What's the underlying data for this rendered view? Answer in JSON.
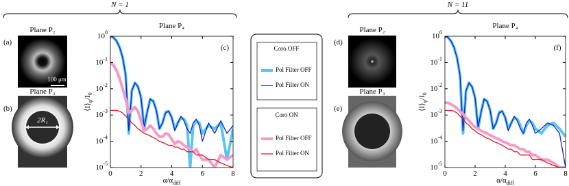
{
  "figure": {
    "groups": [
      {
        "label": "N = 1",
        "images": [
          {
            "tag": "(a)",
            "title": "Plane P₂",
            "scale_bar": "100 μm"
          },
          {
            "tag": "(b)",
            "title": "Plane P₃",
            "annotation": "2R₁"
          }
        ]
      },
      {
        "label": "N = 11",
        "images": [
          {
            "tag": "(d)",
            "title": "Plane P₂"
          },
          {
            "tag": "(e)",
            "title": "Plane P₃"
          }
        ]
      }
    ],
    "legend_groups": [
      "Coro OFF",
      "Coro ON"
    ]
  },
  "chart_data": [
    {
      "type": "line",
      "title": "Plane P₄",
      "tag": "(c)",
      "xlabel": "α/α_{diff}",
      "ylabel": "⟨I⟩_{φ}/I_{0}",
      "ylog": true,
      "grid": false,
      "xlim": [
        0,
        8
      ],
      "xticks": [
        0,
        2,
        4,
        6,
        8
      ],
      "ylim": [
        1e-05,
        1
      ],
      "yticks": [
        {
          "value": 1,
          "label": "10^{0}"
        },
        {
          "value": 0.1,
          "label": "10^{-1}"
        },
        {
          "value": 0.01,
          "label": "10^{-2}"
        },
        {
          "value": 0.001,
          "label": "10^{-3}"
        },
        {
          "value": 0.0001,
          "label": "10^{-4}"
        },
        {
          "value": 1e-05,
          "label": "10^{-5}"
        }
      ],
      "x": [
        0,
        0.2,
        0.4,
        0.6,
        0.8,
        1.0,
        1.2,
        1.4,
        1.6,
        1.8,
        2.0,
        2.2,
        2.4,
        2.6,
        2.8,
        3.0,
        3.2,
        3.4,
        3.6,
        3.8,
        4.0,
        4.2,
        4.4,
        4.6,
        4.8,
        5.0,
        5.2,
        5.4,
        5.6,
        5.8,
        6.0,
        6.4,
        6.8,
        7.2,
        7.6,
        8.0
      ],
      "series": [
        {
          "name": "Pol Filter OFF",
          "color": "#5bc4ef",
          "linewidth": 4,
          "values": [
            1,
            0.905,
            0.666,
            0.381,
            0.156,
            0.0328,
            0.0002,
            0.0085,
            0.017,
            0.012,
            0.0046,
            0.0003,
            0.0013,
            0.0041,
            0.0034,
            0.0015,
            0.0003,
            0.0005,
            0.0013,
            0.0014,
            0.0008,
            0.0003,
            0.0005,
            0.0008,
            0.0007,
            0.0004,
            1e-05,
            0.0004,
            0.0006,
            0.0005,
            0.0002,
            0.0004,
            0.0003,
            0.0005,
            2e-05,
            0.0003
          ]
        },
        {
          "name": "Pol Filter ON",
          "color": "#0a22d0",
          "linewidth": 1.3,
          "values": [
            1,
            0.9,
            0.66,
            0.38,
            0.155,
            0.033,
            0.00025,
            0.0084,
            0.0168,
            0.0118,
            0.0045,
            0.00035,
            0.0013,
            0.004,
            0.0033,
            0.0015,
            0.0003,
            0.0005,
            0.0012,
            0.0014,
            0.0008,
            0.00025,
            0.0005,
            0.0009,
            0.0006,
            0.0003,
            0.0002,
            0.0005,
            0.0007,
            0.0004,
            0.0001,
            0.0005,
            0.0002,
            0.0006,
            0.0002,
            0.0004
          ]
        },
        {
          "name": "Pol Filter OFF",
          "color": "#f59ac6",
          "linewidth": 4,
          "values": [
            0.1,
            0.08,
            0.05,
            0.025,
            0.01,
            0.004,
            0.0012,
            0.0015,
            0.002,
            0.0014,
            0.0006,
            0.00025,
            0.0003,
            0.0004,
            0.0003,
            0.0002,
            0.00015,
            0.00015,
            0.0002,
            0.00018,
            0.00012,
            8e-05,
            0.0001,
            9e-05,
            7e-05,
            6e-05,
            5e-05,
            4e-05,
            5e-05,
            3e-05,
            2e-05,
            2e-05,
            1e-05,
            3e-05,
            2e-05,
            3e-05
          ]
        },
        {
          "name": "Pol Filter ON",
          "color": "#e8151b",
          "linewidth": 1.3,
          "values": [
            0.0015,
            0.0015,
            0.0015,
            0.0014,
            0.0012,
            0.0009,
            0.0007,
            0.0005,
            0.0004,
            0.0003,
            0.00025,
            0.0002,
            0.00018,
            0.00016,
            0.00014,
            0.00012,
            0.0001,
            9e-05,
            8e-05,
            7e-05,
            7e-05,
            6e-05,
            6e-05,
            5e-05,
            5e-05,
            4e-05,
            4e-05,
            4e-05,
            3e-05,
            3e-05,
            3e-05,
            2e-05,
            2e-05,
            1.5e-05,
            1.2e-05,
            1e-05
          ]
        }
      ]
    },
    {
      "type": "line",
      "title": "Plane P₄",
      "tag": "(f)",
      "xlabel": "α/α_{diff}",
      "ylabel": "⟨I⟩_{φ}/I_{0}",
      "ylog": true,
      "grid": false,
      "xlim": [
        0,
        8
      ],
      "xticks": [
        0,
        2,
        4,
        6,
        8
      ],
      "ylim": [
        1e-05,
        1
      ],
      "yticks": [
        {
          "value": 1,
          "label": "10^{0}"
        },
        {
          "value": 0.1,
          "label": "10^{-1}"
        },
        {
          "value": 0.01,
          "label": "10^{-2}"
        },
        {
          "value": 0.001,
          "label": "10^{-3}"
        },
        {
          "value": 0.0001,
          "label": "10^{-4}"
        },
        {
          "value": 1e-05,
          "label": "10^{-5}"
        }
      ],
      "x": [
        0,
        0.2,
        0.4,
        0.6,
        0.8,
        1.0,
        1.2,
        1.4,
        1.6,
        1.8,
        2.0,
        2.2,
        2.4,
        2.6,
        2.8,
        3.0,
        3.2,
        3.4,
        3.6,
        3.8,
        4.0,
        4.2,
        4.4,
        4.6,
        4.8,
        5.0,
        5.2,
        5.4,
        5.6,
        5.8,
        6.0,
        6.4,
        6.8,
        7.2,
        7.6,
        8.0
      ],
      "series": [
        {
          "name": "Pol Filter OFF",
          "color": "#5bc4ef",
          "linewidth": 4,
          "values": [
            1,
            0.905,
            0.666,
            0.381,
            0.156,
            0.0328,
            0.0002,
            0.0085,
            0.017,
            0.012,
            0.0046,
            0.0003,
            0.0013,
            0.0041,
            0.0034,
            0.0015,
            0.0003,
            0.0005,
            0.0013,
            0.0014,
            0.0008,
            0.0003,
            0.0005,
            0.0008,
            0.0007,
            0.0004,
            0.0002,
            0.0004,
            0.0006,
            0.0005,
            0.0003,
            0.0002,
            0.0004,
            0.0005,
            0.0003,
            0.00015
          ]
        },
        {
          "name": "Pol Filter ON",
          "color": "#0a22d0",
          "linewidth": 1.3,
          "values": [
            1,
            0.9,
            0.66,
            0.38,
            0.155,
            0.033,
            0.00025,
            0.0084,
            0.0168,
            0.0118,
            0.0045,
            0.00035,
            0.0013,
            0.004,
            0.0033,
            0.0015,
            0.0003,
            0.0005,
            0.0012,
            0.0014,
            0.0008,
            0.00025,
            0.0005,
            0.0009,
            0.0006,
            0.0003,
            0.0002,
            0.0005,
            0.0007,
            0.0004,
            0.0002,
            0.0003,
            0.0005,
            0.0004,
            0.0002,
            1e-05
          ]
        },
        {
          "name": "Pol Filter OFF",
          "color": "#f59ac6",
          "linewidth": 4,
          "values": [
            0.003,
            0.0029,
            0.0026,
            0.0022,
            0.0018,
            0.0014,
            0.0011,
            0.0008,
            0.0006,
            0.00045,
            0.00035,
            0.0003,
            0.00025,
            0.00022,
            0.0002,
            0.00017,
            0.00015,
            0.00013,
            0.00012,
            0.0001,
            9e-05,
            8e-05,
            7e-05,
            7e-05,
            6e-05,
            5e-05,
            5e-05,
            4e-05,
            4e-05,
            3e-05,
            3e-05,
            2e-05,
            2e-05,
            1.5e-05,
            1e-05,
            1e-05
          ]
        },
        {
          "name": "Pol Filter ON",
          "color": "#e8151b",
          "linewidth": 1.3,
          "values": [
            0.0015,
            0.0015,
            0.0015,
            0.0014,
            0.0012,
            0.0009,
            0.0007,
            0.0005,
            0.0004,
            0.0003,
            0.00025,
            0.0002,
            0.00018,
            0.00015,
            0.00013,
            0.00012,
            0.0001,
            9e-05,
            8e-05,
            7e-05,
            6e-05,
            5e-05,
            5e-05,
            4e-05,
            4e-05,
            3e-05,
            3e-05,
            3e-05,
            3e-05,
            2e-05,
            2e-05,
            2e-05,
            1.5e-05,
            1.2e-05,
            1e-05,
            1e-05
          ]
        }
      ]
    }
  ]
}
